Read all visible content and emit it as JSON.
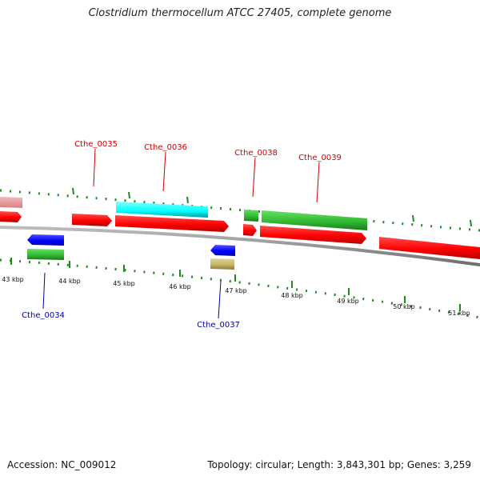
{
  "title": "Clostridium thermocellum ATCC 27405, complete genome",
  "footer": {
    "accession": "Accession: NC_009012",
    "summary": "Topology: circular; Length: 3,843,301 bp; Genes: 3,259"
  },
  "colors": {
    "cds": "#ff0000",
    "rna": "#00ffff",
    "misc": "#33cc33",
    "other": "#0000ff",
    "pseudo": "#c8b56a",
    "faded": "#e89a9a",
    "label_upper": "#cc0000",
    "label_lower": "#0000aa",
    "ticks": "#228822",
    "backbone": "#808080"
  },
  "scale_labels": [
    "43 kbp",
    "44 kbp",
    "45 kbp",
    "46 kbp",
    "47 kbp",
    "48 kbp",
    "49 kbp",
    "50 kbp",
    "51 kbp"
  ],
  "gene_labels": {
    "cthe_0034": "Cthe_0034",
    "cthe_0035": "Cthe_0035",
    "cthe_0036": "Cthe_0036",
    "cthe_0037": "Cthe_0037",
    "cthe_0038": "Cthe_0038",
    "cthe_0039": "Cthe_0039"
  }
}
